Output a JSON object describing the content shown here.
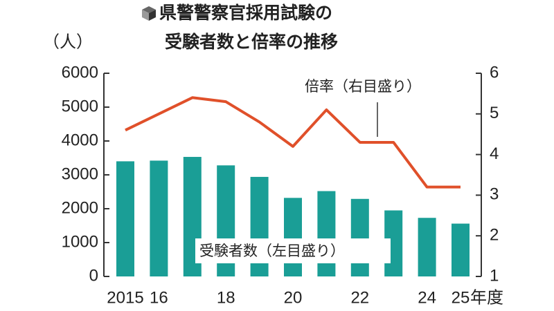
{
  "chart_data": {
    "type": "bar_line",
    "title": [
      "県警警察官採用試験の",
      "受験者数と倍率の推移"
    ],
    "y_label": "（人）",
    "x_label": "年度",
    "categories": [
      "2015",
      "16",
      null,
      "18",
      null,
      "20",
      null,
      "22",
      null,
      "24",
      "25"
    ],
    "series": [
      {
        "name": "受験者数（左目盛り）",
        "type": "bar",
        "color": "#1a9e96",
        "axis": "y",
        "values": [
          3400,
          3420,
          3530,
          3280,
          2940,
          2320,
          2520,
          2290,
          1950,
          1730,
          1560
        ]
      },
      {
        "name": "倍率（右目盛り）",
        "type": "line",
        "color": "#e0502a",
        "axis": "y2",
        "values": [
          4.6,
          5.0,
          5.4,
          5.3,
          4.8,
          4.2,
          5.1,
          4.3,
          4.3,
          3.2,
          3.2
        ]
      }
    ],
    "ylim": [
      0,
      6000
    ],
    "yticks": [
      0,
      1000,
      2000,
      3000,
      4000,
      5000,
      6000
    ],
    "y2lim": [
      1,
      6
    ],
    "y2ticks": [
      1,
      2,
      3,
      4,
      5,
      6
    ]
  }
}
